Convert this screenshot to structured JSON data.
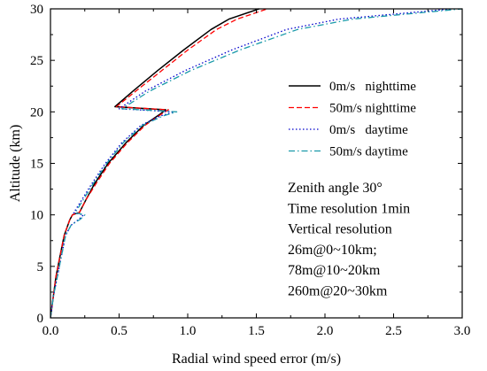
{
  "chart_data": {
    "type": "line",
    "title": "",
    "xlabel": "Radial wind speed error (m/s)",
    "ylabel": "Altitude (km)",
    "xlim": [
      0,
      3.0
    ],
    "ylim": [
      0,
      30
    ],
    "x_ticks": [
      "0.0",
      "0.5",
      "1.0",
      "1.5",
      "2.0",
      "2.5",
      "3.0"
    ],
    "y_ticks": [
      "0",
      "5",
      "10",
      "15",
      "20",
      "25",
      "30"
    ],
    "grid": false,
    "legend_position": "top-right",
    "series": [
      {
        "name": "0m/s   nighttime",
        "color": "#000000",
        "dash": "solid",
        "points": [
          [
            0.0,
            0
          ],
          [
            0.02,
            2
          ],
          [
            0.04,
            4
          ],
          [
            0.07,
            6
          ],
          [
            0.1,
            8
          ],
          [
            0.14,
            9.5
          ],
          [
            0.16,
            10.0
          ],
          [
            0.2,
            10.2
          ],
          [
            0.21,
            10.2
          ],
          [
            0.26,
            11.5
          ],
          [
            0.32,
            13
          ],
          [
            0.42,
            15
          ],
          [
            0.55,
            17
          ],
          [
            0.68,
            18.7
          ],
          [
            0.8,
            19.8
          ],
          [
            0.84,
            20.2
          ],
          [
            0.47,
            20.5
          ],
          [
            0.6,
            22
          ],
          [
            0.78,
            24
          ],
          [
            0.97,
            26
          ],
          [
            1.17,
            28
          ],
          [
            1.3,
            29
          ],
          [
            1.52,
            30
          ]
        ]
      },
      {
        "name": "50m/s nighttime",
        "color": "#ff0000",
        "dash": "dashed",
        "points": [
          [
            0.0,
            0
          ],
          [
            0.02,
            2
          ],
          [
            0.04,
            4
          ],
          [
            0.07,
            6
          ],
          [
            0.1,
            8
          ],
          [
            0.14,
            9.5
          ],
          [
            0.16,
            10.0
          ],
          [
            0.2,
            10.2
          ],
          [
            0.21,
            10.2
          ],
          [
            0.26,
            11.5
          ],
          [
            0.33,
            13
          ],
          [
            0.43,
            15
          ],
          [
            0.56,
            17
          ],
          [
            0.69,
            18.7
          ],
          [
            0.81,
            19.8
          ],
          [
            0.86,
            20.2
          ],
          [
            0.48,
            20.5
          ],
          [
            0.62,
            22
          ],
          [
            0.81,
            24
          ],
          [
            1.0,
            26
          ],
          [
            1.21,
            28
          ],
          [
            1.36,
            29
          ],
          [
            1.58,
            30
          ]
        ]
      },
      {
        "name": "0m/s   daytime",
        "color": "#0000cc",
        "dash": "dotted",
        "points": [
          [
            0.0,
            0
          ],
          [
            0.02,
            2
          ],
          [
            0.05,
            4
          ],
          [
            0.08,
            6
          ],
          [
            0.11,
            8
          ],
          [
            0.15,
            9
          ],
          [
            0.21,
            9.6
          ],
          [
            0.24,
            10.0
          ],
          [
            0.17,
            10.2
          ],
          [
            0.23,
            11.5
          ],
          [
            0.3,
            13
          ],
          [
            0.4,
            15
          ],
          [
            0.52,
            17
          ],
          [
            0.66,
            18.7
          ],
          [
            0.8,
            19.6
          ],
          [
            0.9,
            20.0
          ],
          [
            0.5,
            20.3
          ],
          [
            0.69,
            22
          ],
          [
            0.98,
            24
          ],
          [
            1.32,
            26
          ],
          [
            1.72,
            28
          ],
          [
            2.1,
            29
          ],
          [
            2.93,
            30
          ]
        ]
      },
      {
        "name": "50m/s daytime",
        "color": "#1a9aaa",
        "dash": "dashdot",
        "points": [
          [
            0.0,
            0
          ],
          [
            0.02,
            2
          ],
          [
            0.05,
            4
          ],
          [
            0.08,
            6
          ],
          [
            0.11,
            8
          ],
          [
            0.15,
            9
          ],
          [
            0.22,
            9.6
          ],
          [
            0.25,
            10.0
          ],
          [
            0.18,
            10.2
          ],
          [
            0.24,
            11.5
          ],
          [
            0.31,
            13
          ],
          [
            0.41,
            15
          ],
          [
            0.53,
            17
          ],
          [
            0.67,
            18.7
          ],
          [
            0.82,
            19.6
          ],
          [
            0.92,
            20.0
          ],
          [
            0.52,
            20.3
          ],
          [
            0.72,
            22
          ],
          [
            1.02,
            24
          ],
          [
            1.38,
            26
          ],
          [
            1.8,
            28
          ],
          [
            2.2,
            29
          ],
          [
            3.0,
            30
          ]
        ]
      }
    ],
    "annotations": [
      "Zenith angle 30°",
      "Time resolution 1min",
      "Vertical resolution",
      "26m@0~10km;",
      "78m@10~20km",
      "260m@20~30km"
    ]
  }
}
